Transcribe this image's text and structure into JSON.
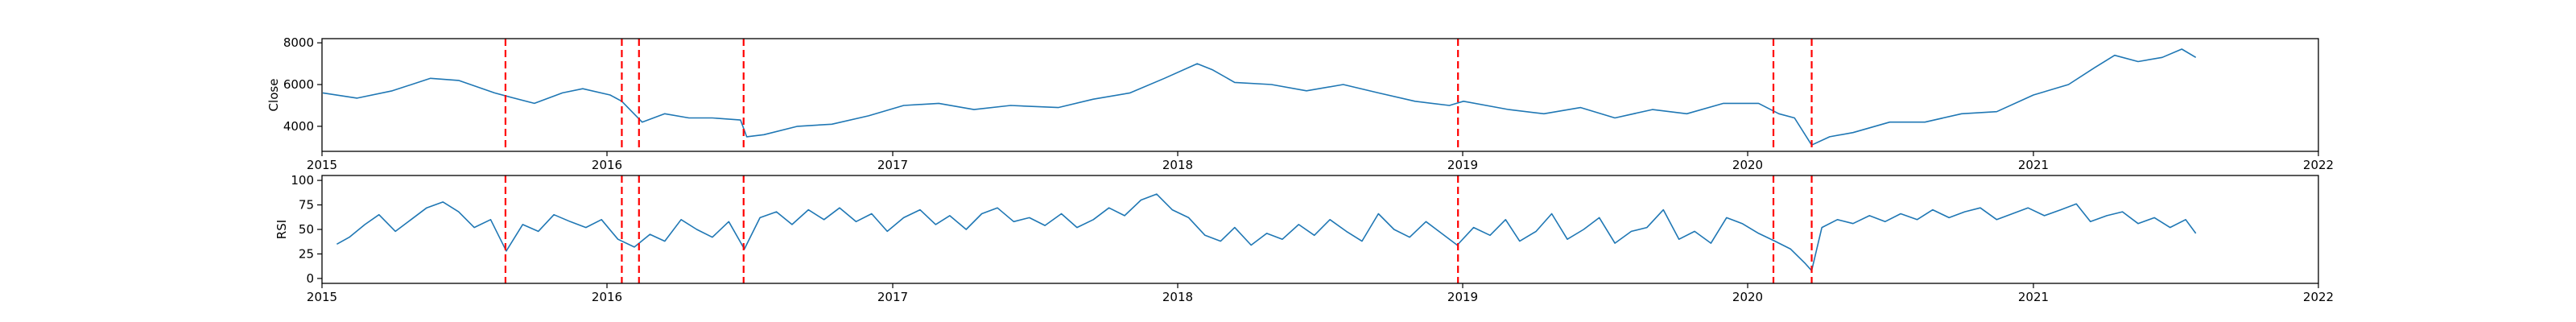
{
  "colors": {
    "series": "#1f77b4",
    "events": "#ff0000",
    "frame": "#000000"
  },
  "chart_data": [
    {
      "type": "line",
      "ylabel": "Close",
      "xlim": [
        "2015-01-01",
        "2022-01-01"
      ],
      "ylim": [
        2800,
        8200
      ],
      "yticks": [
        4000,
        6000,
        8000
      ],
      "xticks": [
        "2015",
        "2016",
        "2017",
        "2018",
        "2019",
        "2020",
        "2021",
        "2022"
      ],
      "grid": false,
      "series": [
        {
          "x": [
            "2015-01-02",
            "2015-02-15",
            "2015-04-01",
            "2015-05-20",
            "2015-06-25",
            "2015-08-10",
            "2015-08-25",
            "2015-09-30",
            "2015-11-05",
            "2015-12-01",
            "2016-01-05",
            "2016-01-20",
            "2016-02-15",
            "2016-03-15",
            "2016-04-15",
            "2016-05-15",
            "2016-06-20",
            "2016-06-28",
            "2016-07-20",
            "2016-09-01",
            "2016-10-15",
            "2016-12-01",
            "2017-01-15",
            "2017-03-01",
            "2017-04-15",
            "2017-06-01",
            "2017-08-01",
            "2017-09-15",
            "2017-11-01",
            "2017-12-15",
            "2018-01-26",
            "2018-02-15",
            "2018-03-15",
            "2018-05-01",
            "2018-06-15",
            "2018-08-01",
            "2018-09-15",
            "2018-11-01",
            "2018-12-15",
            "2019-01-02",
            "2019-03-01",
            "2019-04-15",
            "2019-06-01",
            "2019-07-15",
            "2019-09-01",
            "2019-10-15",
            "2019-12-01",
            "2020-01-15",
            "2020-02-10",
            "2020-03-01",
            "2020-03-23",
            "2020-04-15",
            "2020-05-15",
            "2020-07-01",
            "2020-08-15",
            "2020-10-01",
            "2020-11-15",
            "2021-01-01",
            "2021-02-15",
            "2021-03-20",
            "2021-04-15",
            "2021-05-15",
            "2021-06-15",
            "2021-07-10",
            "2021-07-28"
          ],
          "values": [
            5600,
            5350,
            5700,
            6300,
            6200,
            5600,
            5450,
            5100,
            5600,
            5800,
            5500,
            5200,
            4200,
            4600,
            4400,
            4400,
            4300,
            3500,
            3600,
            4000,
            4100,
            4500,
            5000,
            5100,
            4800,
            5000,
            4900,
            5300,
            5600,
            6300,
            7000,
            6700,
            6100,
            6000,
            5700,
            6000,
            5600,
            5200,
            5000,
            5200,
            4800,
            4600,
            4900,
            4400,
            4800,
            4600,
            5100,
            5100,
            4600,
            4400,
            3100,
            3500,
            3700,
            4200,
            4200,
            4600,
            4700,
            5500,
            6000,
            6800,
            7400,
            7100,
            7300,
            7700,
            7300
          ]
        }
      ]
    },
    {
      "type": "line",
      "ylabel": "RSI",
      "xlim": [
        "2015-01-01",
        "2022-01-01"
      ],
      "ylim": [
        -5,
        105
      ],
      "yticks": [
        0,
        25,
        50,
        75,
        100
      ],
      "xticks": [
        "2015",
        "2016",
        "2017",
        "2018",
        "2019",
        "2020",
        "2021",
        "2022"
      ],
      "grid": false,
      "series": [
        {
          "x": [
            "2015-01-20",
            "2015-02-05",
            "2015-02-25",
            "2015-03-15",
            "2015-04-05",
            "2015-04-25",
            "2015-05-15",
            "2015-06-05",
            "2015-06-25",
            "2015-07-15",
            "2015-08-05",
            "2015-08-25",
            "2015-09-15",
            "2015-10-05",
            "2015-10-25",
            "2015-11-15",
            "2015-12-05",
            "2015-12-25",
            "2016-01-15",
            "2016-02-05",
            "2016-02-25",
            "2016-03-15",
            "2016-04-05",
            "2016-04-25",
            "2016-05-15",
            "2016-06-05",
            "2016-06-25",
            "2016-07-15",
            "2016-08-05",
            "2016-08-25",
            "2016-09-15",
            "2016-10-05",
            "2016-10-25",
            "2016-11-15",
            "2016-12-05",
            "2016-12-25",
            "2017-01-15",
            "2017-02-05",
            "2017-02-25",
            "2017-03-15",
            "2017-04-05",
            "2017-04-25",
            "2017-05-15",
            "2017-06-05",
            "2017-06-25",
            "2017-07-15",
            "2017-08-05",
            "2017-08-25",
            "2017-09-15",
            "2017-10-05",
            "2017-10-25",
            "2017-11-15",
            "2017-12-05",
            "2017-12-25",
            "2018-01-15",
            "2018-02-05",
            "2018-02-25",
            "2018-03-15",
            "2018-04-05",
            "2018-04-25",
            "2018-05-15",
            "2018-06-05",
            "2018-06-25",
            "2018-07-15",
            "2018-08-05",
            "2018-08-25",
            "2018-09-15",
            "2018-10-05",
            "2018-10-25",
            "2018-11-15",
            "2018-12-05",
            "2018-12-25",
            "2019-01-15",
            "2019-02-05",
            "2019-02-25",
            "2019-03-15",
            "2019-04-05",
            "2019-04-25",
            "2019-05-15",
            "2019-06-05",
            "2019-06-25",
            "2019-07-15",
            "2019-08-05",
            "2019-08-25",
            "2019-09-15",
            "2019-10-05",
            "2019-10-25",
            "2019-11-15",
            "2019-12-05",
            "2019-12-25",
            "2020-01-15",
            "2020-02-05",
            "2020-02-25",
            "2020-03-15",
            "2020-03-23",
            "2020-04-05",
            "2020-04-25",
            "2020-05-15",
            "2020-06-05",
            "2020-06-25",
            "2020-07-15",
            "2020-08-05",
            "2020-08-25",
            "2020-09-15",
            "2020-10-05",
            "2020-10-25",
            "2020-11-15",
            "2020-12-05",
            "2020-12-25",
            "2021-01-15",
            "2021-02-05",
            "2021-02-25",
            "2021-03-15",
            "2021-04-05",
            "2021-04-25",
            "2021-05-15",
            "2021-06-05",
            "2021-06-25",
            "2021-07-15",
            "2021-07-28"
          ],
          "values": [
            35,
            42,
            55,
            65,
            48,
            60,
            72,
            78,
            68,
            52,
            60,
            28,
            55,
            48,
            65,
            58,
            52,
            60,
            40,
            32,
            45,
            38,
            60,
            50,
            42,
            58,
            30,
            62,
            68,
            55,
            70,
            60,
            72,
            58,
            66,
            48,
            62,
            70,
            55,
            64,
            50,
            66,
            72,
            58,
            62,
            54,
            66,
            52,
            60,
            72,
            64,
            80,
            86,
            70,
            62,
            44,
            38,
            52,
            34,
            46,
            40,
            55,
            44,
            60,
            48,
            38,
            66,
            50,
            42,
            58,
            46,
            34,
            52,
            44,
            60,
            38,
            48,
            66,
            40,
            50,
            62,
            36,
            48,
            52,
            70,
            40,
            48,
            36,
            62,
            56,
            46,
            38,
            30,
            15,
            8,
            52,
            60,
            56,
            64,
            58,
            66,
            60,
            70,
            62,
            68,
            72,
            60,
            66,
            72,
            64,
            70,
            76,
            58,
            64,
            68,
            56,
            62,
            52,
            60,
            46
          ]
        }
      ]
    }
  ],
  "events": [
    "2015-08-24",
    "2016-01-20",
    "2016-02-11",
    "2016-06-24",
    "2018-12-26",
    "2020-02-03",
    "2020-03-23"
  ]
}
